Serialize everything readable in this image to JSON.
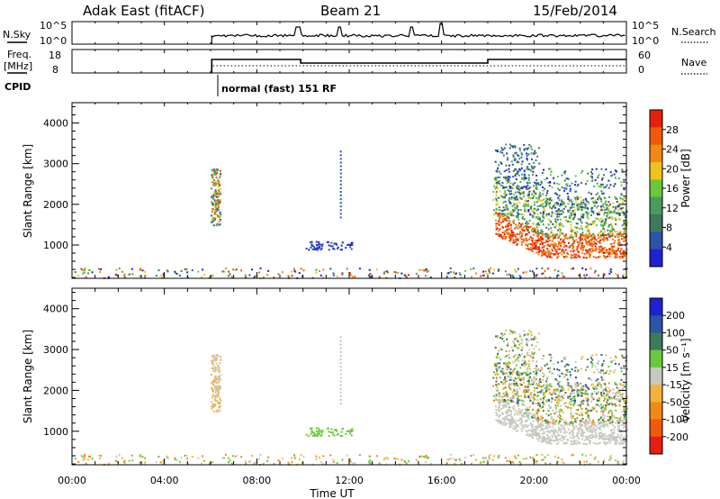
{
  "header": {
    "station": "Adak East (fitACF)",
    "beam": "Beam 21",
    "date": "15/Feb/2014"
  },
  "panels": {
    "noise": {
      "label": "N.Sky",
      "left_ticks": [
        "10^5",
        "10^0"
      ],
      "right_ticks": [
        "10^5",
        "10^0"
      ],
      "right_label": "N.Search"
    },
    "freq": {
      "label_line1": "Freq.",
      "label_line2": "[MHz]",
      "left_ticks": [
        "18",
        "8"
      ],
      "right_ticks": [
        "60",
        "0"
      ],
      "right_label": "Nave"
    },
    "cpid": {
      "label": "CPID",
      "mode": "normal (fast) 151 RF"
    }
  },
  "colors": {
    "power_scale": [
      "#1e23d2",
      "#2a55a8",
      "#3c7a5a",
      "#4a9a62",
      "#6cc83a",
      "#f0c21a",
      "#f08a12",
      "#f05a0a",
      "#e81e0e"
    ],
    "velocity_scale": [
      "#e81e0e",
      "#f05a0a",
      "#f08a12",
      "#f4b23a",
      "#c8c8c0",
      "#6cc83a",
      "#3c7a5a",
      "#2a55a8",
      "#1e23d2"
    ]
  },
  "chart_data": [
    {
      "type": "heatmap",
      "name": "power",
      "ylabel": "Slant Range [km]",
      "xlabel": "Time UT",
      "x_tick_labels": [
        "00:00",
        "04:00",
        "08:00",
        "12:00",
        "16:00",
        "20:00",
        "00:00"
      ],
      "xlim_hours": [
        0,
        24
      ],
      "ylim": [
        180,
        4500
      ],
      "y_tick_values": [
        1000,
        2000,
        3000,
        4000
      ],
      "y_tick_labels": [
        "1000",
        "2000",
        "3000",
        "4000"
      ],
      "colorbar": {
        "label": "Power [dB]",
        "min": 0,
        "max": 32,
        "tick_values": [
          4,
          8,
          12,
          16,
          20,
          24,
          28
        ],
        "tick_labels": [
          "4",
          "8",
          "12",
          "16",
          "20",
          "24",
          "28"
        ]
      }
    },
    {
      "type": "heatmap",
      "name": "velocity",
      "ylabel": "Slant Range [km]",
      "xlabel": "Time UT",
      "x_tick_labels": [
        "00:00",
        "04:00",
        "08:00",
        "12:00",
        "16:00",
        "20:00",
        "00:00"
      ],
      "xlim_hours": [
        0,
        24
      ],
      "ylim": [
        180,
        4500
      ],
      "y_tick_values": [
        1000,
        2000,
        3000,
        4000
      ],
      "y_tick_labels": [
        "1000",
        "2000",
        "3000",
        "4000"
      ],
      "colorbar": {
        "label": "Velocity [m s⁻¹]",
        "tick_labels": [
          "200",
          "100",
          "50",
          "15",
          "-15",
          "-50",
          "-100",
          "-200"
        ]
      }
    }
  ]
}
